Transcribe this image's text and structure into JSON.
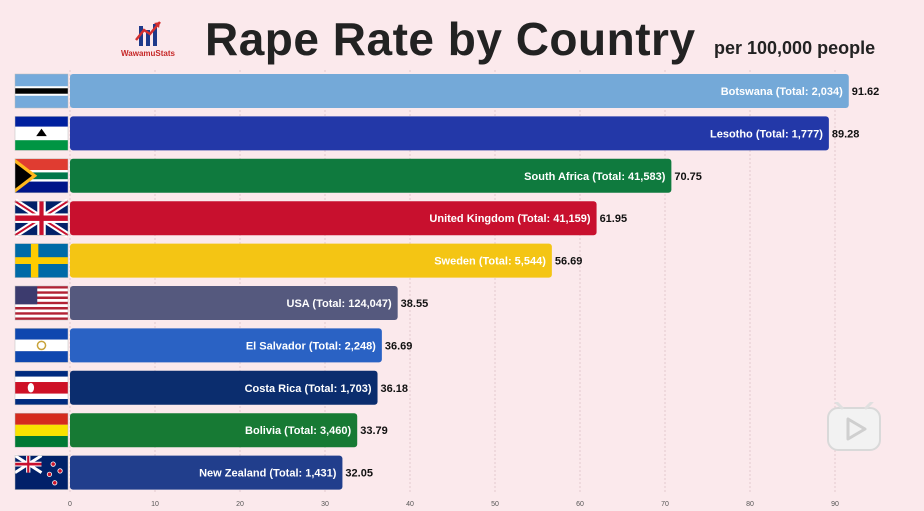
{
  "header": {
    "title": "Rape Rate by Country",
    "subtitle": "per 100,000 people",
    "logo_text": "WawamuStats"
  },
  "chart_data": {
    "type": "bar",
    "orientation": "horizontal",
    "title": "Rape Rate by Country",
    "subtitle": "per 100,000 people",
    "xlim": [
      0,
      92
    ],
    "xticks": [
      0,
      10,
      20,
      30,
      40,
      50,
      60,
      70,
      80,
      90
    ],
    "grid": true,
    "bars": [
      {
        "country": "Botswana",
        "label": "Botswana (Total: 2,034)",
        "value": 91.62,
        "value_label": "91.62",
        "color": "#74a9d8",
        "flag": "botswana"
      },
      {
        "country": "Lesotho",
        "label": "Lesotho (Total: 1,777)",
        "value": 89.28,
        "value_label": "89.28",
        "color": "#2338a8",
        "flag": "lesotho"
      },
      {
        "country": "South Africa",
        "label": "South Africa (Total: 41,583)",
        "value": 70.75,
        "value_label": "70.75",
        "color": "#0f7a3e",
        "flag": "south-africa"
      },
      {
        "country": "United Kingdom",
        "label": "United Kingdom (Total: 41,159)",
        "value": 61.95,
        "value_label": "61.95",
        "color": "#c8102e",
        "flag": "united-kingdom"
      },
      {
        "country": "Sweden",
        "label": "Sweden (Total: 5,544)",
        "value": 56.69,
        "value_label": "56.69",
        "color": "#f4c514",
        "flag": "sweden"
      },
      {
        "country": "USA",
        "label": "USA (Total: 124,047)",
        "value": 38.55,
        "value_label": "38.55",
        "color": "#55597e",
        "flag": "usa"
      },
      {
        "country": "El Salvador",
        "label": "El Salvador (Total: 2,248)",
        "value": 36.69,
        "value_label": "36.69",
        "color": "#2a62c4",
        "flag": "el-salvador"
      },
      {
        "country": "Costa Rica",
        "label": "Costa Rica (Total: 1,703)",
        "value": 36.18,
        "value_label": "36.18",
        "color": "#0b2d6e",
        "flag": "costa-rica"
      },
      {
        "country": "Bolivia",
        "label": "Bolivia (Total: 3,460)",
        "value": 33.79,
        "value_label": "33.79",
        "color": "#177a34",
        "flag": "bolivia"
      },
      {
        "country": "New Zealand",
        "label": "New Zealand (Total: 1,431)",
        "value": 32.05,
        "value_label": "32.05",
        "color": "#213e8c",
        "flag": "new-zealand"
      }
    ]
  },
  "icons": {
    "logo": "wawamustats-logo-icon",
    "play": "play-button-icon"
  }
}
